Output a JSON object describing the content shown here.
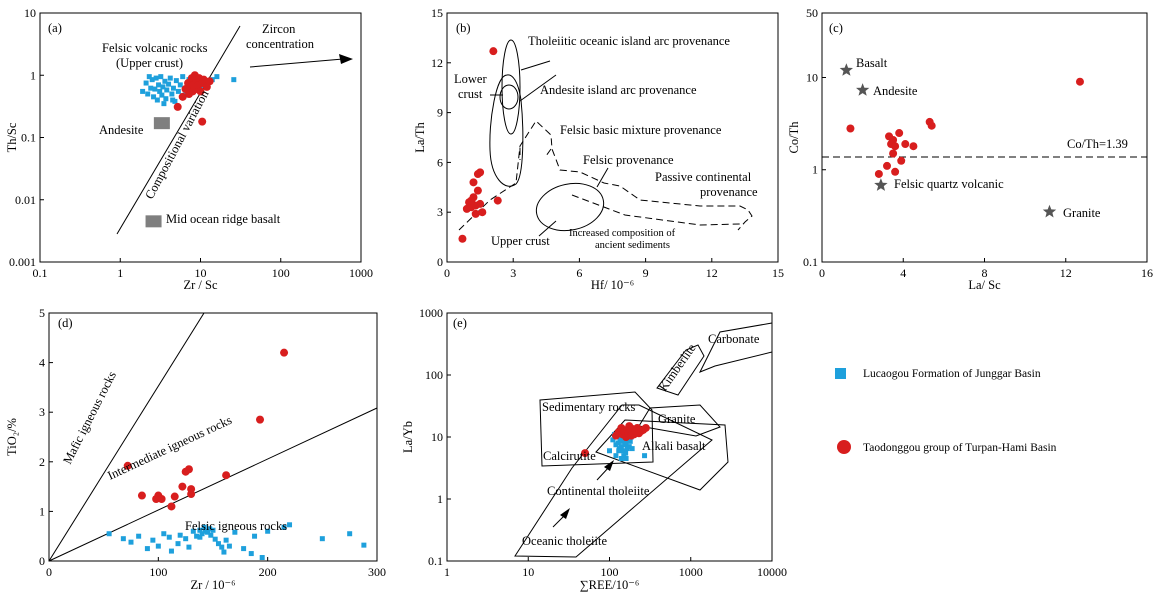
{
  "colors": {
    "blue": "#1ea0dc",
    "red": "#d81e1e",
    "gray": "#7f7f7f",
    "star": "#555555"
  },
  "legend": {
    "items": [
      {
        "label": "Lucaogou Formation of Junggar Basin",
        "marker": "square",
        "color": "#1ea0dc"
      },
      {
        "label": "Taodonggou group of Turpan-Hami Basin",
        "marker": "circle",
        "color": "#d81e1e"
      }
    ]
  },
  "chart_data": [
    {
      "id": "a",
      "type": "scatter",
      "panel_label": "(a)",
      "xlabel": "Zr / Sc",
      "ylabel": "Th/Sc",
      "xscale": "log",
      "yscale": "log",
      "xlim": [
        0.1,
        1000
      ],
      "ylim": [
        0.001,
        10
      ],
      "xticks": [
        0.1,
        1,
        10,
        100,
        1000
      ],
      "xtick_labels": [
        "0.1",
        "1",
        "10",
        "100",
        "1000"
      ],
      "yticks": [
        0.001,
        0.01,
        0.1,
        1,
        10
      ],
      "ytick_labels": [
        "0.001",
        "0.01",
        "0.1",
        "1",
        "10"
      ],
      "series": [
        {
          "marker": "square",
          "color": "#1ea0dc",
          "points": [
            [
              1.9,
              0.55
            ],
            [
              2.1,
              0.75
            ],
            [
              2.2,
              0.5
            ],
            [
              2.4,
              0.62
            ],
            [
              2.5,
              0.85
            ],
            [
              2.6,
              0.45
            ],
            [
              2.7,
              0.6
            ],
            [
              2.8,
              0.9
            ],
            [
              2.9,
              0.4
            ],
            [
              3.0,
              0.7
            ],
            [
              3.1,
              0.55
            ],
            [
              3.2,
              0.95
            ],
            [
              3.3,
              0.48
            ],
            [
              3.4,
              0.65
            ],
            [
              3.6,
              0.8
            ],
            [
              3.7,
              0.42
            ],
            [
              3.8,
              0.58
            ],
            [
              4.0,
              0.72
            ],
            [
              4.2,
              0.9
            ],
            [
              4.4,
              0.5
            ],
            [
              4.6,
              0.62
            ],
            [
              4.8,
              0.38
            ],
            [
              5.0,
              0.82
            ],
            [
              5.3,
              0.55
            ],
            [
              5.6,
              0.7
            ],
            [
              6.0,
              0.95
            ],
            [
              6.4,
              0.48
            ],
            [
              6.8,
              0.6
            ],
            [
              7.2,
              0.85
            ],
            [
              7.6,
              0.52
            ],
            [
              8.0,
              0.68
            ],
            [
              9.0,
              0.9
            ],
            [
              10,
              0.6
            ],
            [
              12,
              0.75
            ],
            [
              14,
              0.85
            ],
            [
              16,
              0.95
            ],
            [
              26,
              0.85
            ],
            [
              3.5,
              0.35
            ],
            [
              4.5,
              0.4
            ],
            [
              2.3,
              0.95
            ]
          ]
        },
        {
          "marker": "circle",
          "color": "#d81e1e",
          "points": [
            [
              5.2,
              0.31
            ],
            [
              6.0,
              0.45
            ],
            [
              6.5,
              0.6
            ],
            [
              7.0,
              0.75
            ],
            [
              7.2,
              0.5
            ],
            [
              7.5,
              0.65
            ],
            [
              7.8,
              0.9
            ],
            [
              8.0,
              0.55
            ],
            [
              8.2,
              0.7
            ],
            [
              8.5,
              1.0
            ],
            [
              8.8,
              0.6
            ],
            [
              9.0,
              0.8
            ],
            [
              9.3,
              0.68
            ],
            [
              9.6,
              0.9
            ],
            [
              10.0,
              0.55
            ],
            [
              10.5,
              0.75
            ],
            [
              11,
              0.85
            ],
            [
              12,
              0.65
            ],
            [
              13,
              0.8
            ],
            [
              10.5,
              0.18
            ]
          ]
        },
        {
          "marker": "rect",
          "color": "#7f7f7f",
          "points": [
            [
              3.3,
              0.17
            ],
            [
              2.6,
              0.0045
            ]
          ]
        }
      ],
      "annotations": [
        "Felsic volcanic rocks",
        "(Upper crust)",
        "Zircon",
        "concentration",
        "Andesite",
        "Compositional variation",
        "Mid ocean ridge basalt"
      ]
    },
    {
      "id": "b",
      "type": "scatter",
      "panel_label": "(b)",
      "xlabel": "Hf/ 10⁻⁶",
      "ylabel": "La/Th",
      "xlim": [
        0,
        15
      ],
      "ylim": [
        0,
        15
      ],
      "xticks": [
        0,
        3,
        6,
        9,
        12,
        15
      ],
      "xtick_labels": [
        "0",
        "3",
        "6",
        "9",
        "12",
        "15"
      ],
      "yticks": [
        0,
        3,
        6,
        9,
        12,
        15
      ],
      "ytick_labels": [
        "0",
        "3",
        "6",
        "9",
        "12",
        "15"
      ],
      "series": [
        {
          "marker": "circle",
          "color": "#d81e1e",
          "points": [
            [
              2.1,
              12.7
            ],
            [
              0.7,
              1.4
            ],
            [
              0.9,
              3.2
            ],
            [
              1.0,
              3.6
            ],
            [
              1.1,
              3.3
            ],
            [
              1.2,
              3.9
            ],
            [
              1.3,
              3.4
            ],
            [
              1.4,
              4.3
            ],
            [
              1.5,
              3.5
            ],
            [
              1.3,
              2.9
            ],
            [
              1.6,
              3.0
            ],
            [
              1.2,
              4.8
            ],
            [
              1.4,
              5.3
            ],
            [
              1.5,
              5.4
            ],
            [
              2.3,
              3.7
            ],
            [
              1.1,
              3.7
            ]
          ]
        }
      ],
      "annotations": [
        "Tholeiitic oceanic island arc provenance",
        "Lower",
        "crust",
        "Andesite island arc provenance",
        "Felsic basic mixture provenance",
        "Felsic provenance",
        "Passive continental",
        "provenance",
        "Upper crust",
        "Increased composition of",
        "ancient sediments"
      ]
    },
    {
      "id": "c",
      "type": "scatter",
      "panel_label": "(c)",
      "xlabel": "La/ Sc",
      "ylabel": "Co/Th",
      "yscale": "log",
      "xlim": [
        0,
        16
      ],
      "ylim": [
        0.1,
        50
      ],
      "xticks": [
        0,
        4,
        8,
        12,
        16
      ],
      "xtick_labels": [
        "0",
        "4",
        "8",
        "12",
        "16"
      ],
      "yticks": [
        0.1,
        1,
        10,
        50
      ],
      "ytick_labels": [
        "0.1",
        "1",
        "10",
        "50"
      ],
      "reference_line": {
        "y": 1.39,
        "label": "Co/Th=1.39"
      },
      "series": [
        {
          "marker": "circle",
          "color": "#d81e1e",
          "points": [
            [
              12.7,
              9.0
            ],
            [
              1.4,
              2.8
            ],
            [
              3.3,
              2.3
            ],
            [
              3.5,
              2.1
            ],
            [
              3.8,
              2.5
            ],
            [
              3.4,
              1.9
            ],
            [
              3.6,
              1.8
            ],
            [
              4.1,
              1.9
            ],
            [
              4.5,
              1.8
            ],
            [
              3.5,
              1.5
            ],
            [
              3.9,
              1.25
            ],
            [
              3.2,
              1.1
            ],
            [
              3.6,
              0.95
            ],
            [
              2.8,
              0.9
            ],
            [
              5.3,
              3.3
            ],
            [
              5.4,
              3.0
            ]
          ]
        },
        {
          "marker": "star",
          "color": "#555555",
          "points": [
            [
              1.2,
              12
            ],
            [
              2.0,
              7.3
            ],
            [
              2.9,
              0.68
            ],
            [
              11.2,
              0.35
            ]
          ]
        }
      ],
      "annotations": [
        "Basalt",
        "Andesite",
        "Felsic quartz volcanic",
        "Granite"
      ]
    },
    {
      "id": "d",
      "type": "scatter",
      "panel_label": "(d)",
      "xlabel": "Zr / 10⁻⁶",
      "ylabel": "TiO₂/%",
      "xlim": [
        0,
        300
      ],
      "ylim": [
        0,
        5
      ],
      "xticks": [
        0,
        100,
        200,
        300
      ],
      "xtick_labels": [
        "0",
        "100",
        "200",
        "300"
      ],
      "yticks": [
        0,
        1,
        2,
        3,
        4,
        5
      ],
      "ytick_labels": [
        "0",
        "1",
        "2",
        "3",
        "4",
        "5"
      ],
      "series": [
        {
          "marker": "square",
          "color": "#1ea0dc",
          "points": [
            [
              55,
              0.55
            ],
            [
              68,
              0.45
            ],
            [
              75,
              0.38
            ],
            [
              82,
              0.5
            ],
            [
              90,
              0.25
            ],
            [
              95,
              0.42
            ],
            [
              100,
              0.3
            ],
            [
              105,
              0.55
            ],
            [
              110,
              0.48
            ],
            [
              112,
              0.2
            ],
            [
              118,
              0.35
            ],
            [
              120,
              0.52
            ],
            [
              125,
              0.45
            ],
            [
              128,
              0.28
            ],
            [
              132,
              0.6
            ],
            [
              135,
              0.5
            ],
            [
              138,
              0.62
            ],
            [
              140,
              0.55
            ],
            [
              142,
              0.68
            ],
            [
              145,
              0.58
            ],
            [
              148,
              0.52
            ],
            [
              150,
              0.62
            ],
            [
              152,
              0.44
            ],
            [
              155,
              0.35
            ],
            [
              158,
              0.28
            ],
            [
              160,
              0.18
            ],
            [
              162,
              0.42
            ],
            [
              165,
              0.3
            ],
            [
              170,
              0.58
            ],
            [
              178,
              0.25
            ],
            [
              185,
              0.15
            ],
            [
              188,
              0.5
            ],
            [
              195,
              0.07
            ],
            [
              200,
              0.6
            ],
            [
              215,
              0.68
            ],
            [
              220,
              0.73
            ],
            [
              250,
              0.45
            ],
            [
              275,
              0.55
            ],
            [
              288,
              0.32
            ],
            [
              138,
              0.48
            ],
            [
              143,
              0.6
            ],
            [
              147,
              0.65
            ]
          ]
        },
        {
          "marker": "circle",
          "color": "#d81e1e",
          "points": [
            [
              72,
              1.92
            ],
            [
              85,
              1.32
            ],
            [
              98,
              1.25
            ],
            [
              100,
              1.32
            ],
            [
              103,
              1.25
            ],
            [
              112,
              1.1
            ],
            [
              115,
              1.3
            ],
            [
              122,
              1.5
            ],
            [
              125,
              1.8
            ],
            [
              128,
              1.85
            ],
            [
              130,
              1.35
            ],
            [
              130,
              1.45
            ],
            [
              162,
              1.73
            ],
            [
              193,
              2.85
            ],
            [
              215,
              4.2
            ]
          ]
        }
      ],
      "annotations": [
        "Mafic igneous rocks",
        "Intermediate igneous rocks",
        "Felsic igneous rocks"
      ]
    },
    {
      "id": "e",
      "type": "scatter",
      "panel_label": "(e)",
      "xlabel": "∑REE/10⁻⁶",
      "ylabel": "La/Yb",
      "xscale": "log",
      "yscale": "log",
      "xlim": [
        1,
        10000
      ],
      "ylim": [
        0.1,
        1000
      ],
      "xticks": [
        1,
        10,
        100,
        1000,
        10000
      ],
      "xtick_labels": [
        "1",
        "10",
        "100",
        "1000",
        "10000"
      ],
      "yticks": [
        0.1,
        1,
        10,
        100,
        1000
      ],
      "ytick_labels": [
        "0.1",
        "1",
        "10",
        "100",
        "1000"
      ],
      "series": [
        {
          "marker": "square",
          "color": "#1ea0dc",
          "points": [
            [
              110,
              9
            ],
            [
              115,
              11
            ],
            [
              120,
              7.5
            ],
            [
              125,
              10
            ],
            [
              128,
              8
            ],
            [
              130,
              12
            ],
            [
              132,
              6.5
            ],
            [
              135,
              9.5
            ],
            [
              138,
              11
            ],
            [
              140,
              7
            ],
            [
              142,
              8.5
            ],
            [
              145,
              10.5
            ],
            [
              148,
              6
            ],
            [
              150,
              9
            ],
            [
              152,
              12
            ],
            [
              155,
              7.5
            ],
            [
              158,
              5.5
            ],
            [
              160,
              8
            ],
            [
              162,
              10
            ],
            [
              165,
              6.5
            ],
            [
              168,
              9
            ],
            [
              170,
              11.5
            ],
            [
              175,
              7
            ],
            [
              180,
              8.5
            ],
            [
              185,
              10
            ],
            [
              120,
              5
            ],
            [
              140,
              4.5
            ],
            [
              160,
              4.5
            ],
            [
              100,
              6
            ],
            [
              130,
              6
            ],
            [
              150,
              5
            ],
            [
              190,
              6.5
            ],
            [
              270,
              5
            ]
          ]
        },
        {
          "marker": "circle",
          "color": "#d81e1e",
          "points": [
            [
              50,
              5.5
            ],
            [
              120,
              10.5
            ],
            [
              130,
              12
            ],
            [
              140,
              14
            ],
            [
              145,
              11
            ],
            [
              150,
              12.5
            ],
            [
              160,
              10
            ],
            [
              165,
              13
            ],
            [
              170,
              11.5
            ],
            [
              175,
              15
            ],
            [
              180,
              12
            ],
            [
              185,
              10.5
            ],
            [
              190,
              13.5
            ],
            [
              200,
              11
            ],
            [
              210,
              12.5
            ],
            [
              220,
              14
            ],
            [
              230,
              11.5
            ],
            [
              245,
              12.5
            ],
            [
              260,
              13
            ],
            [
              280,
              14
            ]
          ]
        }
      ],
      "annotations": [
        "Carbonate",
        "Kimberlite",
        "Sedimentary rocks",
        "Granite",
        "Calcirutite",
        "Alkali basalt",
        "Continental tholeiite",
        "Oceanic tholeiite"
      ]
    }
  ]
}
